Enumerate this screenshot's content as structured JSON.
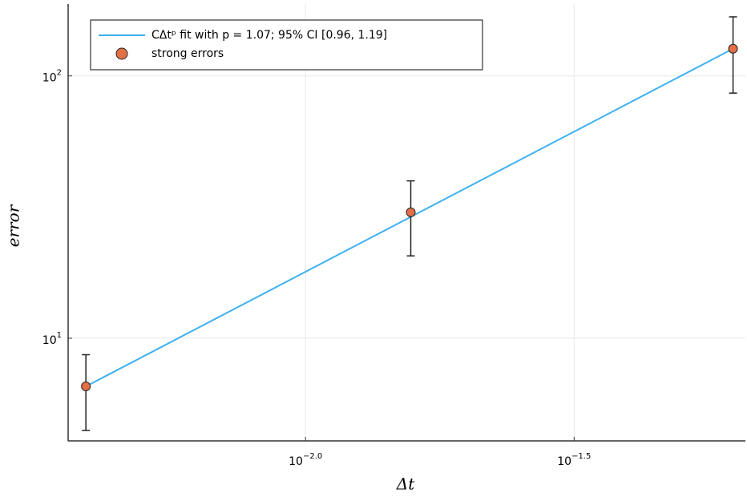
{
  "chart_data": {
    "type": "loglog-errorbar",
    "x_label": "Δt",
    "y_label": "error",
    "xscale": "log",
    "yscale": "log",
    "grid": true,
    "xlim": [
      0.003614,
      0.0659
    ],
    "ylim": [
      4.06,
      188
    ],
    "xticks": [
      {
        "value": 0.01,
        "label": "10",
        "exponent": "−2.0"
      },
      {
        "value": 0.031623,
        "label": "10",
        "exponent": "−1.5"
      }
    ],
    "yticks": [
      {
        "value": 10,
        "label": "10",
        "exponent": "1"
      },
      {
        "value": 100,
        "label": "10",
        "exponent": "2"
      }
    ],
    "legend": "top-left",
    "series": [
      {
        "name": "CΔtᵖ fit with p = 1.07; 95% CI [0.96, 1.19]",
        "kind": "line",
        "color": "#3fb1f0",
        "x": [
          0.0039,
          0.0625
        ],
        "values": [
          6.55,
          127
        ]
      },
      {
        "name": "strong errors",
        "kind": "scatter",
        "color": "#e26f46",
        "x": [
          0.0039,
          0.0157,
          0.0625
        ],
        "values": [
          6.55,
          30.2,
          127
        ],
        "errors": [
          2.1,
          9.6,
          41
        ]
      }
    ]
  }
}
